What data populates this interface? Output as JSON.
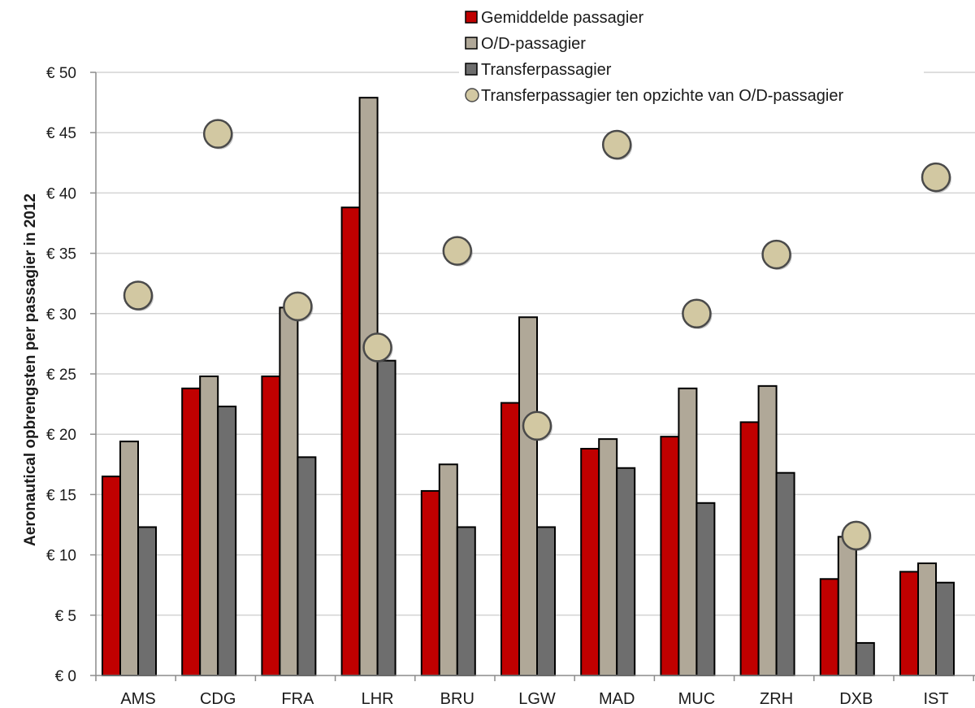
{
  "chart_data": {
    "type": "bar",
    "ylabel": "Aeronautical opbrengsten per passagier in 2012",
    "ylim": [
      0,
      50
    ],
    "y_ticks": [
      0,
      5,
      10,
      15,
      20,
      25,
      30,
      35,
      40,
      45,
      50
    ],
    "y_tick_labels": [
      "€ 0",
      "€ 5",
      "€ 10",
      "€ 15",
      "€ 20",
      "€ 25",
      "€ 30",
      "€ 35",
      "€ 40",
      "€ 45",
      "€ 50"
    ],
    "grid": true,
    "legend_position": "top-right",
    "categories": [
      "AMS",
      "CDG",
      "FRA",
      "LHR",
      "BRU",
      "LGW",
      "MAD",
      "MUC",
      "ZRH",
      "DXB",
      "IST"
    ],
    "series": [
      {
        "name": "Gemiddelde passagier",
        "kind": "bar",
        "color": "#c00000",
        "values": [
          16.5,
          23.8,
          24.8,
          38.8,
          15.3,
          22.6,
          18.8,
          19.8,
          21.0,
          8.0,
          8.6
        ]
      },
      {
        "name": "O/D-passagier",
        "kind": "bar",
        "color": "#b0a898",
        "values": [
          19.4,
          24.8,
          30.5,
          47.9,
          17.5,
          29.7,
          19.6,
          23.8,
          24.0,
          11.5,
          9.3
        ]
      },
      {
        "name": "Transferpassagier",
        "kind": "bar",
        "color": "#6e6e6e",
        "values": [
          12.3,
          22.3,
          18.1,
          26.1,
          12.3,
          12.3,
          17.2,
          14.3,
          16.8,
          2.7,
          7.7
        ]
      },
      {
        "name": "Transferpassagier ten opzichte van O/D-passagier",
        "kind": "marker",
        "color": "#d2c8a2",
        "values": [
          31.5,
          44.9,
          30.6,
          27.2,
          35.2,
          20.7,
          44.0,
          30.0,
          34.9,
          11.6,
          41.3
        ]
      }
    ]
  }
}
